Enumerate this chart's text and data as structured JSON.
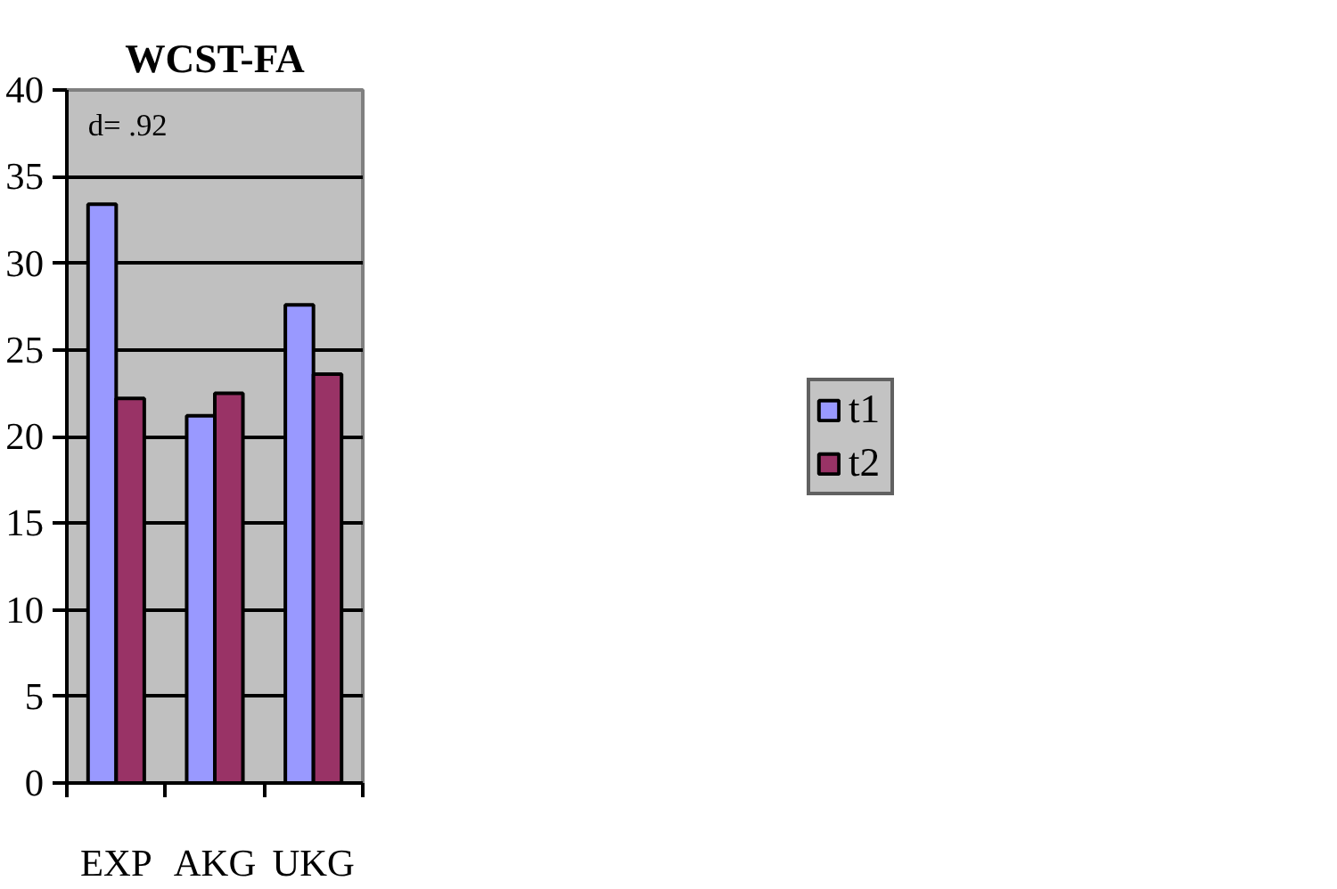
{
  "chart_data": {
    "type": "bar",
    "title": "WCST-FA",
    "categories": [
      "EXP",
      "AKG",
      "UKG"
    ],
    "series": [
      {
        "name": "t1",
        "color": "#9999ff",
        "values": [
          33.4,
          21.2,
          27.6
        ]
      },
      {
        "name": "t2",
        "color": "#993366",
        "values": [
          22.2,
          22.5,
          23.6
        ]
      }
    ],
    "ylim": [
      0,
      40
    ],
    "yticks": [
      0,
      5,
      10,
      15,
      20,
      25,
      30,
      35,
      40
    ],
    "grid": "y",
    "legend": "right",
    "annotations": [
      "d= .92"
    ]
  }
}
